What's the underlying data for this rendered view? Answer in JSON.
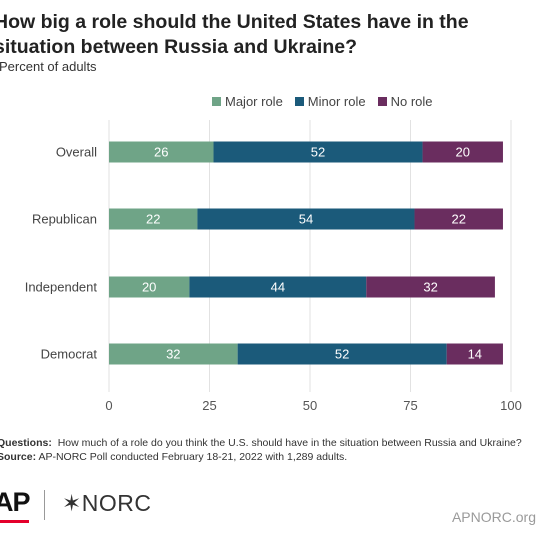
{
  "title": "How big a role should the United States have in the situation between Russia and Ukraine?",
  "subtitle": "Percent of adults",
  "colors": {
    "major": "#6fa487",
    "minor": "#1b5a7a",
    "none": "#6a2d5f"
  },
  "chart_data": {
    "type": "bar",
    "orientation": "horizontal",
    "stacked": true,
    "categories": [
      "Overall",
      "Republican",
      "Independent",
      "Democrat"
    ],
    "series": [
      {
        "name": "Major role",
        "values": [
          26,
          22,
          20,
          32
        ]
      },
      {
        "name": "Minor role",
        "values": [
          52,
          54,
          44,
          52
        ]
      },
      {
        "name": "No role",
        "values": [
          20,
          22,
          32,
          14
        ]
      }
    ],
    "xlim": [
      0,
      100
    ],
    "xticks": [
      0,
      25,
      50,
      75,
      100
    ],
    "grid": true,
    "legend": "top"
  },
  "notes": {
    "questions_label": "Questions:",
    "questions_text": "How much of a role do you think the U.S. should have in the situation between Russia and Ukraine?",
    "source_label": "Source:",
    "source_text": "AP-NORC Poll conducted February 18-21, 2022 with 1,289 adults."
  },
  "footer": {
    "logo_ap": "AP",
    "logo_norc": "✶NORC",
    "site": "APNORC.org"
  }
}
